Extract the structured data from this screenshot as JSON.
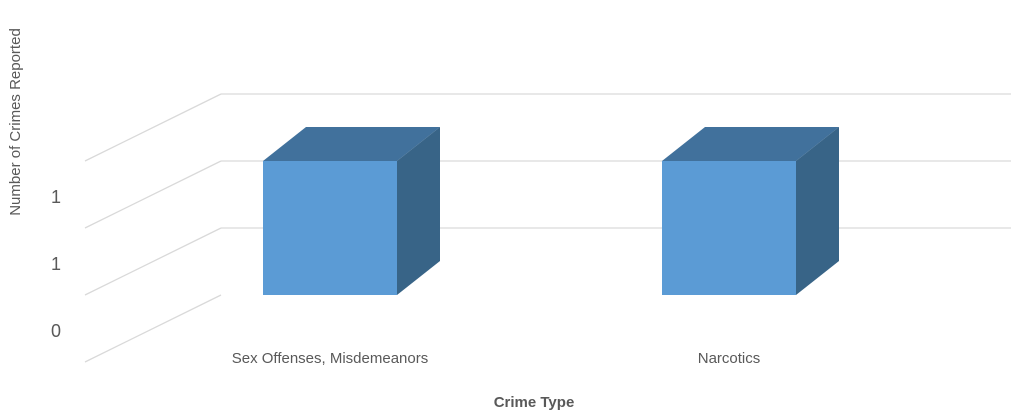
{
  "chart_data": {
    "type": "bar",
    "title": "",
    "xlabel": "Crime Type",
    "ylabel": "Number of Crimes Reported",
    "categories": [
      "Sex Offenses, Misdemeanors",
      "Narcotics"
    ],
    "values": [
      1,
      1
    ],
    "y_tick_labels": [
      "0",
      "1",
      "1"
    ],
    "ylim": [
      0,
      1.5
    ],
    "grid": true,
    "legend": "none",
    "style": "3d",
    "colors": {
      "front": "#5b9bd5",
      "top": "#41719c",
      "side": "#386487",
      "grid": "#d9d9d9",
      "text": "#595959"
    }
  }
}
